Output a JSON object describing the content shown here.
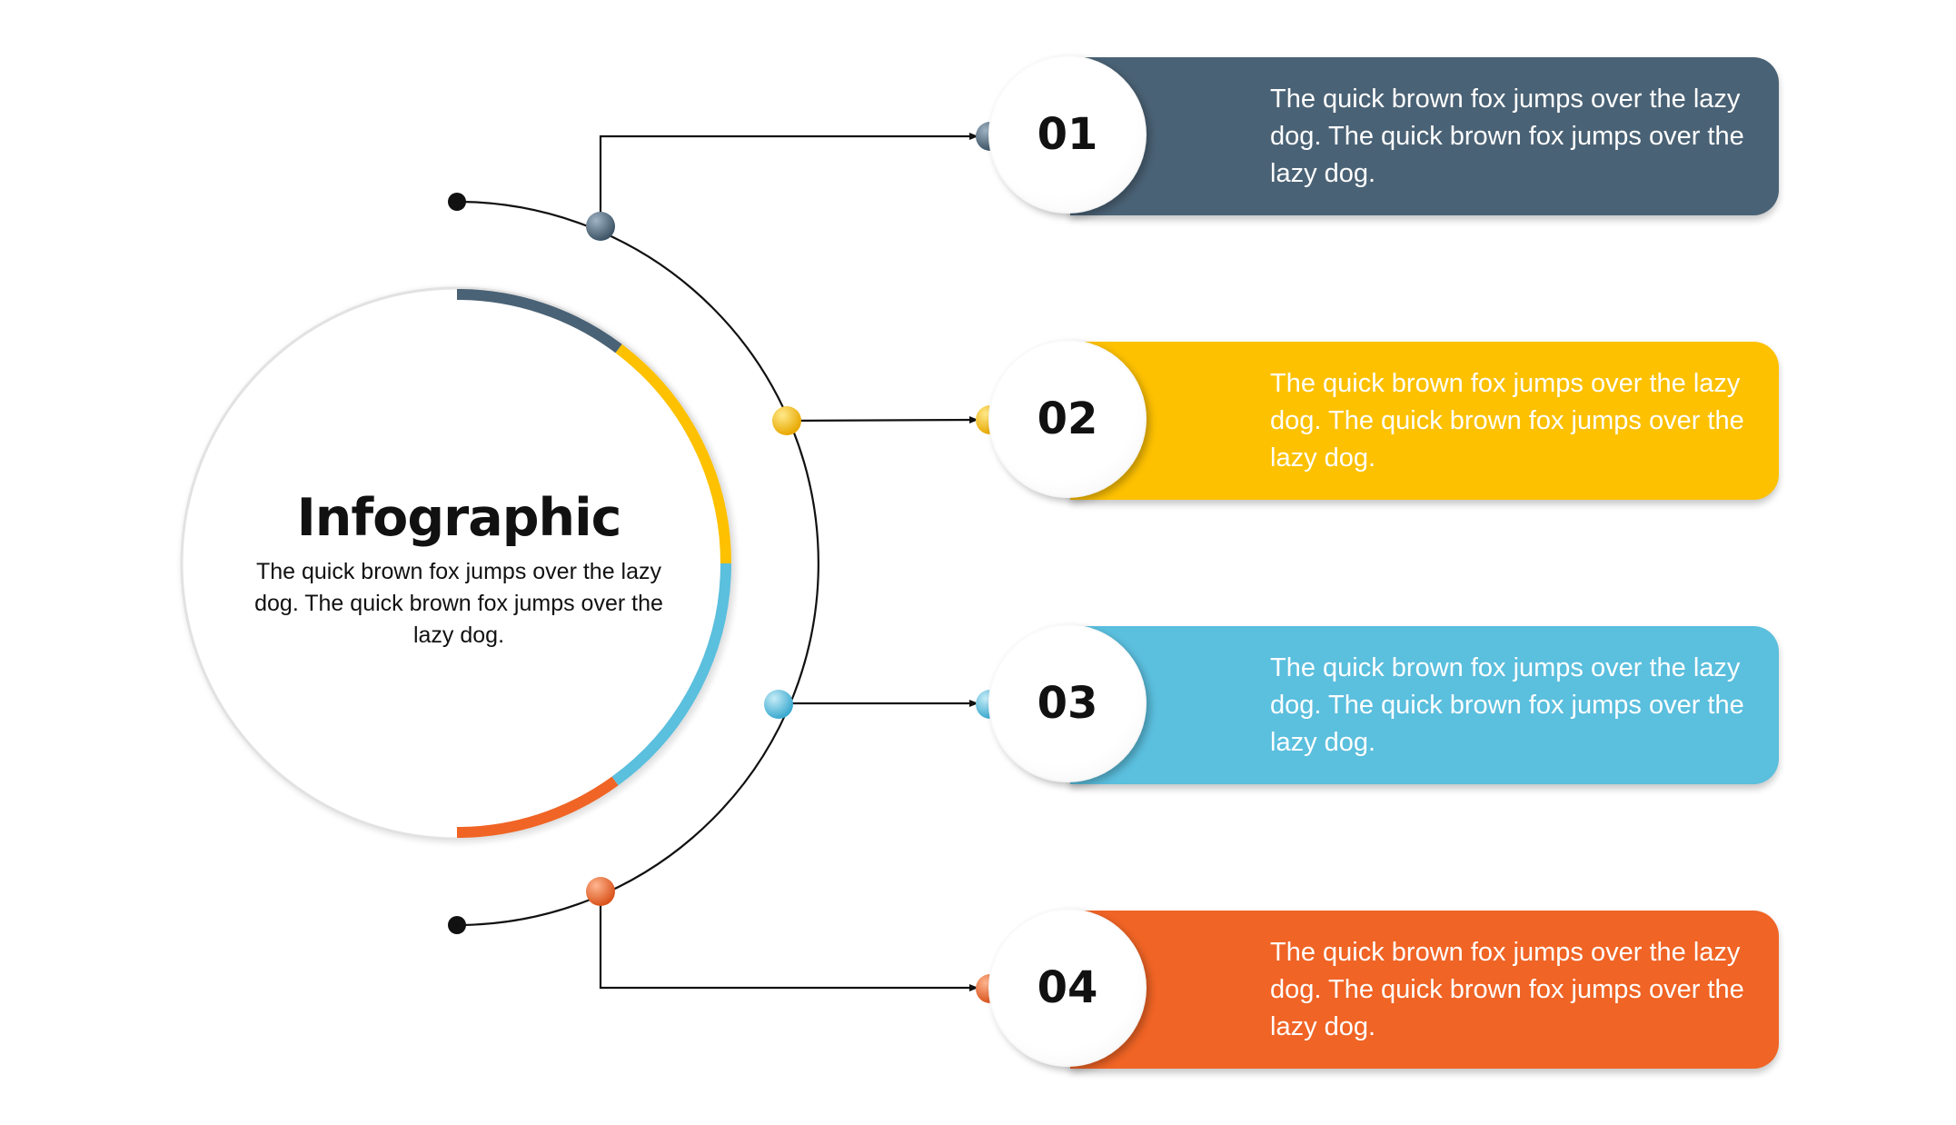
{
  "center": {
    "title": "Infographic",
    "body": "The quick brown fox jumps over the lazy dog. The quick brown fox jumps over the lazy dog."
  },
  "steps": [
    {
      "number": "01",
      "text": "The quick brown fox jumps over the lazy dog. The quick brown fox jumps over the lazy dog.",
      "color": "#4a6275"
    },
    {
      "number": "02",
      "text": "The quick brown fox jumps over the lazy dog. The quick brown fox jumps over the lazy dog.",
      "color": "#fdc100"
    },
    {
      "number": "03",
      "text": "The quick brown fox jumps over the lazy dog. The quick brown fox jumps over the lazy dog.",
      "color": "#5bbfde"
    },
    {
      "number": "04",
      "text": "The quick brown fox jumps over the lazy dog. The quick brown fox jumps over the lazy dog.",
      "color": "#f06425"
    }
  ]
}
